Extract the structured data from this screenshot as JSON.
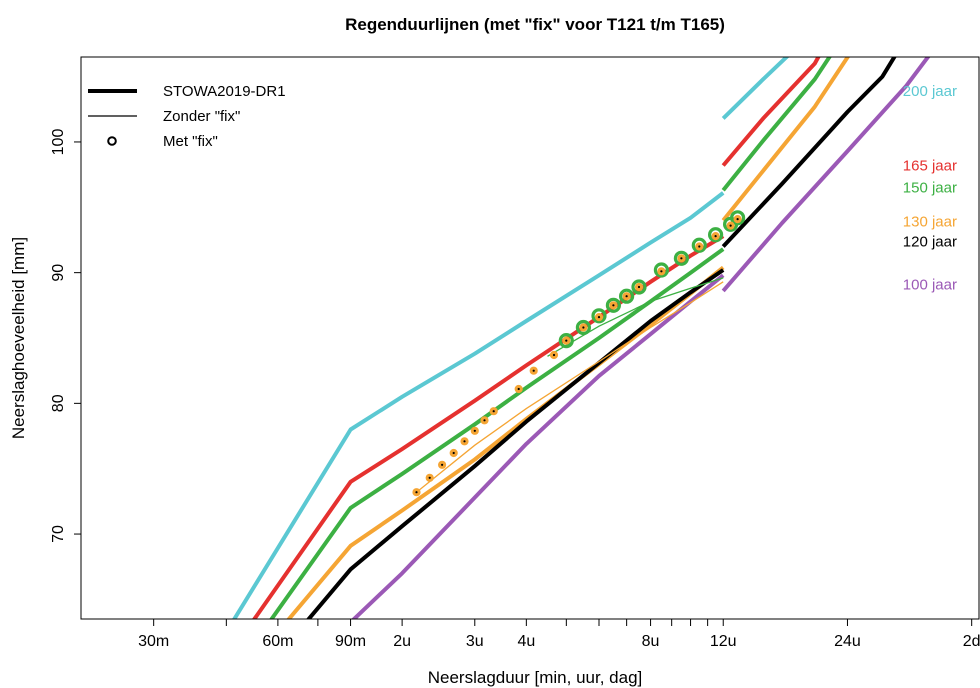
{
  "chart_data": {
    "type": "line",
    "title": "Regenduurlijnen (met \"fix\" voor T121 t/m T165)",
    "xlabel": "Neerslagduur [min, uur, dag]",
    "ylabel": "Neerslaghoeveelheid [mm]",
    "x_scale": "log",
    "x_unit": "minutes",
    "xlim": [
      20,
      3000
    ],
    "ylim": [
      63.5,
      106.5
    ],
    "x_ticks": [
      {
        "value": 30,
        "label": "30m"
      },
      {
        "value": 45,
        "label": ""
      },
      {
        "value": 60,
        "label": "60m"
      },
      {
        "value": 75,
        "label": ""
      },
      {
        "value": 90,
        "label": "90m"
      },
      {
        "value": 120,
        "label": "2u"
      },
      {
        "value": 180,
        "label": "3u"
      },
      {
        "value": 240,
        "label": "4u"
      },
      {
        "value": 300,
        "label": ""
      },
      {
        "value": 360,
        "label": ""
      },
      {
        "value": 420,
        "label": ""
      },
      {
        "value": 480,
        "label": "8u"
      },
      {
        "value": 540,
        "label": ""
      },
      {
        "value": 600,
        "label": ""
      },
      {
        "value": 660,
        "label": ""
      },
      {
        "value": 720,
        "label": "12u"
      },
      {
        "value": 1440,
        "label": "24u"
      },
      {
        "value": 2880,
        "label": "2d"
      }
    ],
    "y_ticks": [
      {
        "value": 70,
        "label": "70"
      },
      {
        "value": 80,
        "label": "80"
      },
      {
        "value": 90,
        "label": "90"
      },
      {
        "value": 100,
        "label": "100"
      }
    ],
    "legend": {
      "position": "top-left",
      "entries": [
        {
          "label": "STOWA2019-DR1",
          "style": "thick-line"
        },
        {
          "label": "Zonder \"fix\"",
          "style": "thin-line"
        },
        {
          "label": "Met \"fix\"",
          "style": "circle"
        }
      ]
    },
    "thick_series": [
      {
        "label": "200 jaar",
        "color": "#5BC8D2",
        "segment_a": [
          [
            45,
            62.5
          ],
          [
            90,
            78
          ],
          [
            120,
            80.5
          ],
          [
            180,
            83.8
          ],
          [
            240,
            86.3
          ],
          [
            360,
            89.8
          ],
          [
            480,
            92.3
          ],
          [
            600,
            94.2
          ],
          [
            720,
            96.1
          ]
        ],
        "segment_b": [
          [
            720,
            101.8
          ],
          [
            900,
            104.8
          ],
          [
            1150,
            108
          ]
        ]
      },
      {
        "label": "165 jaar",
        "color": "#E5312F",
        "segment_a": [
          [
            50,
            62.5
          ],
          [
            90,
            74
          ],
          [
            120,
            76.5
          ],
          [
            180,
            80.2
          ],
          [
            240,
            82.9
          ],
          [
            360,
            86.6
          ],
          [
            480,
            89.3
          ],
          [
            600,
            91.3
          ],
          [
            720,
            92.8
          ]
        ],
        "segment_b": [
          [
            720,
            98.2
          ],
          [
            900,
            101.8
          ],
          [
            1200,
            106
          ],
          [
            1300,
            108
          ]
        ]
      },
      {
        "label": "150 jaar",
        "color": "#3CB043",
        "segment_a": [
          [
            55,
            62.5
          ],
          [
            90,
            72
          ],
          [
            120,
            74.6
          ],
          [
            180,
            78.4
          ],
          [
            240,
            81.2
          ],
          [
            360,
            85
          ],
          [
            480,
            87.8
          ],
          [
            600,
            90
          ],
          [
            720,
            91.8
          ]
        ],
        "segment_b": [
          [
            720,
            96.3
          ],
          [
            900,
            100.1
          ],
          [
            1200,
            104.8
          ],
          [
            1400,
            108
          ]
        ]
      },
      {
        "label": "130 jaar",
        "color": "#F5A534",
        "segment_a": [
          [
            60,
            62.5
          ],
          [
            90,
            69.1
          ],
          [
            120,
            71.8
          ],
          [
            180,
            75.7
          ],
          [
            240,
            78.8
          ],
          [
            360,
            83
          ],
          [
            480,
            86
          ],
          [
            600,
            88.4
          ],
          [
            720,
            90.4
          ]
        ],
        "segment_b": [
          [
            720,
            94
          ],
          [
            900,
            97.8
          ],
          [
            1200,
            102.7
          ],
          [
            1550,
            108
          ]
        ]
      },
      {
        "label": "120 jaar",
        "color": "#000000",
        "segment_a": [
          [
            67,
            62.5
          ],
          [
            90,
            67.3
          ],
          [
            120,
            70.6
          ],
          [
            180,
            75.2
          ],
          [
            240,
            78.6
          ],
          [
            360,
            83.1
          ],
          [
            480,
            86.3
          ],
          [
            600,
            88.5
          ],
          [
            720,
            90.2
          ]
        ],
        "segment_b": [
          [
            720,
            92
          ],
          [
            1000,
            96.8
          ],
          [
            1440,
            102.3
          ],
          [
            1750,
            105
          ],
          [
            2000,
            108
          ]
        ]
      },
      {
        "label": "100 jaar",
        "color": "#9B59B6",
        "segment_a": [
          [
            85,
            62.5
          ],
          [
            120,
            67
          ],
          [
            180,
            72.8
          ],
          [
            240,
            76.9
          ],
          [
            360,
            82.1
          ],
          [
            480,
            85.3
          ],
          [
            600,
            87.8
          ],
          [
            720,
            89.8
          ]
        ],
        "segment_b": [
          [
            720,
            88.6
          ],
          [
            1000,
            93.8
          ],
          [
            1440,
            99.3
          ],
          [
            2000,
            104.3
          ],
          [
            2450,
            108
          ]
        ]
      }
    ],
    "thin_series": [
      {
        "label": "150 jaar zonder fix",
        "color": "#3CB043",
        "points": [
          [
            270,
            83.6
          ],
          [
            360,
            85.9
          ],
          [
            480,
            87.8
          ],
          [
            600,
            88.8
          ],
          [
            720,
            89.6
          ]
        ]
      },
      {
        "label": "130 jaar zonder fix",
        "color": "#F5A534",
        "points": [
          [
            130,
            73.2
          ],
          [
            180,
            76.8
          ],
          [
            240,
            79.6
          ],
          [
            360,
            83.2
          ],
          [
            480,
            85.8
          ],
          [
            600,
            87.7
          ],
          [
            720,
            89.3
          ]
        ]
      }
    ],
    "fix_markers": [
      {
        "label": "150 jaar met fix",
        "color": "#3CB043",
        "size": "large",
        "points": [
          [
            300,
            84.8
          ],
          [
            330,
            85.8
          ],
          [
            360,
            86.7
          ],
          [
            390,
            87.5
          ],
          [
            420,
            88.2
          ],
          [
            450,
            88.9
          ],
          [
            510,
            90.2
          ],
          [
            570,
            91.1
          ],
          [
            630,
            92.1
          ],
          [
            690,
            92.9
          ],
          [
            750,
            93.7
          ],
          [
            780,
            94.2
          ]
        ]
      },
      {
        "label": "130 jaar met fix",
        "color": "#F5A534",
        "size": "small",
        "points": [
          [
            130,
            73.2
          ],
          [
            140,
            74.3
          ],
          [
            150,
            75.3
          ],
          [
            160,
            76.2
          ],
          [
            170,
            77.1
          ],
          [
            180,
            77.9
          ],
          [
            190,
            78.7
          ],
          [
            200,
            79.4
          ],
          [
            230,
            81.1
          ],
          [
            250,
            82.5
          ],
          [
            280,
            83.7
          ],
          [
            300,
            84.8
          ],
          [
            330,
            85.8
          ],
          [
            360,
            86.6
          ],
          [
            390,
            87.5
          ],
          [
            420,
            88.2
          ],
          [
            450,
            88.9
          ],
          [
            510,
            90.1
          ],
          [
            570,
            91.1
          ],
          [
            630,
            92.0
          ],
          [
            690,
            92.8
          ],
          [
            750,
            93.6
          ],
          [
            780,
            94.1
          ]
        ]
      }
    ],
    "period_labels": [
      {
        "label": "200 jaar",
        "color": "#5BC8D2",
        "y": 103.9
      },
      {
        "label": "165 jaar",
        "color": "#E5312F",
        "y": 98.2
      },
      {
        "label": "150 jaar",
        "color": "#3CB043",
        "y": 96.5
      },
      {
        "label": "130 jaar",
        "color": "#F5A534",
        "y": 93.9
      },
      {
        "label": "120 jaar",
        "color": "#000000",
        "y": 92.4
      },
      {
        "label": "100 jaar",
        "color": "#9B59B6",
        "y": 89.1
      }
    ]
  }
}
